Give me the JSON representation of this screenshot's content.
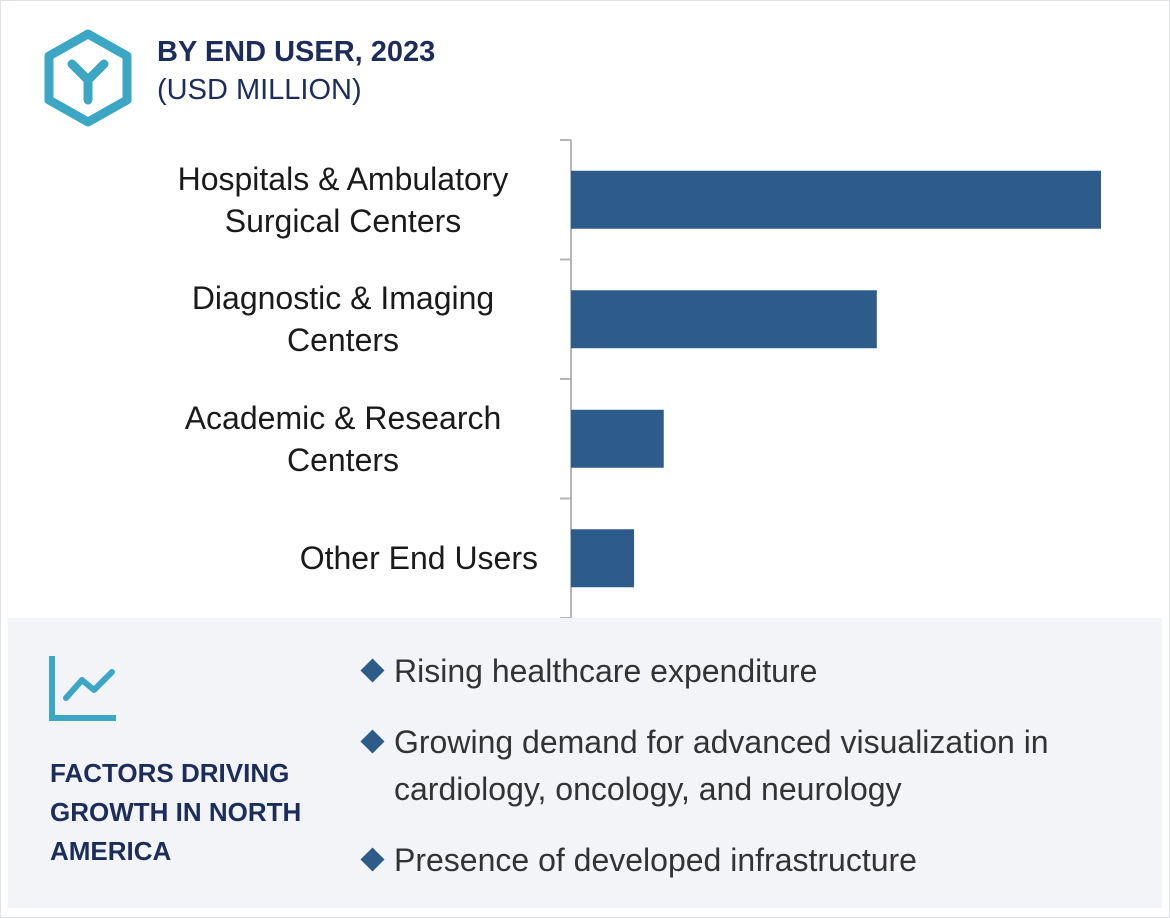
{
  "chart_data": {
    "type": "bar",
    "orientation": "horizontal",
    "title": "BY END USER, 2023",
    "subtitle": "(USD MILLION)",
    "categories": [
      "Hospitals & Ambulatory Surgical Centers",
      "Diagnostic & Imaging Centers",
      "Academic & Research Centers",
      "Other End Users"
    ],
    "values": [
      100,
      57.7,
      17.5,
      11.9
    ],
    "color": "#2e5c8a",
    "xlim": [
      0,
      100
    ]
  },
  "panel": {
    "title": "FACTORS DRIVING GROWTH IN NORTH AMERICA",
    "items": [
      "Rising healthcare expenditure",
      "Growing demand for advanced visualization in cardiology, oncology, and neurology",
      "Presence of developed infrastructure"
    ]
  }
}
